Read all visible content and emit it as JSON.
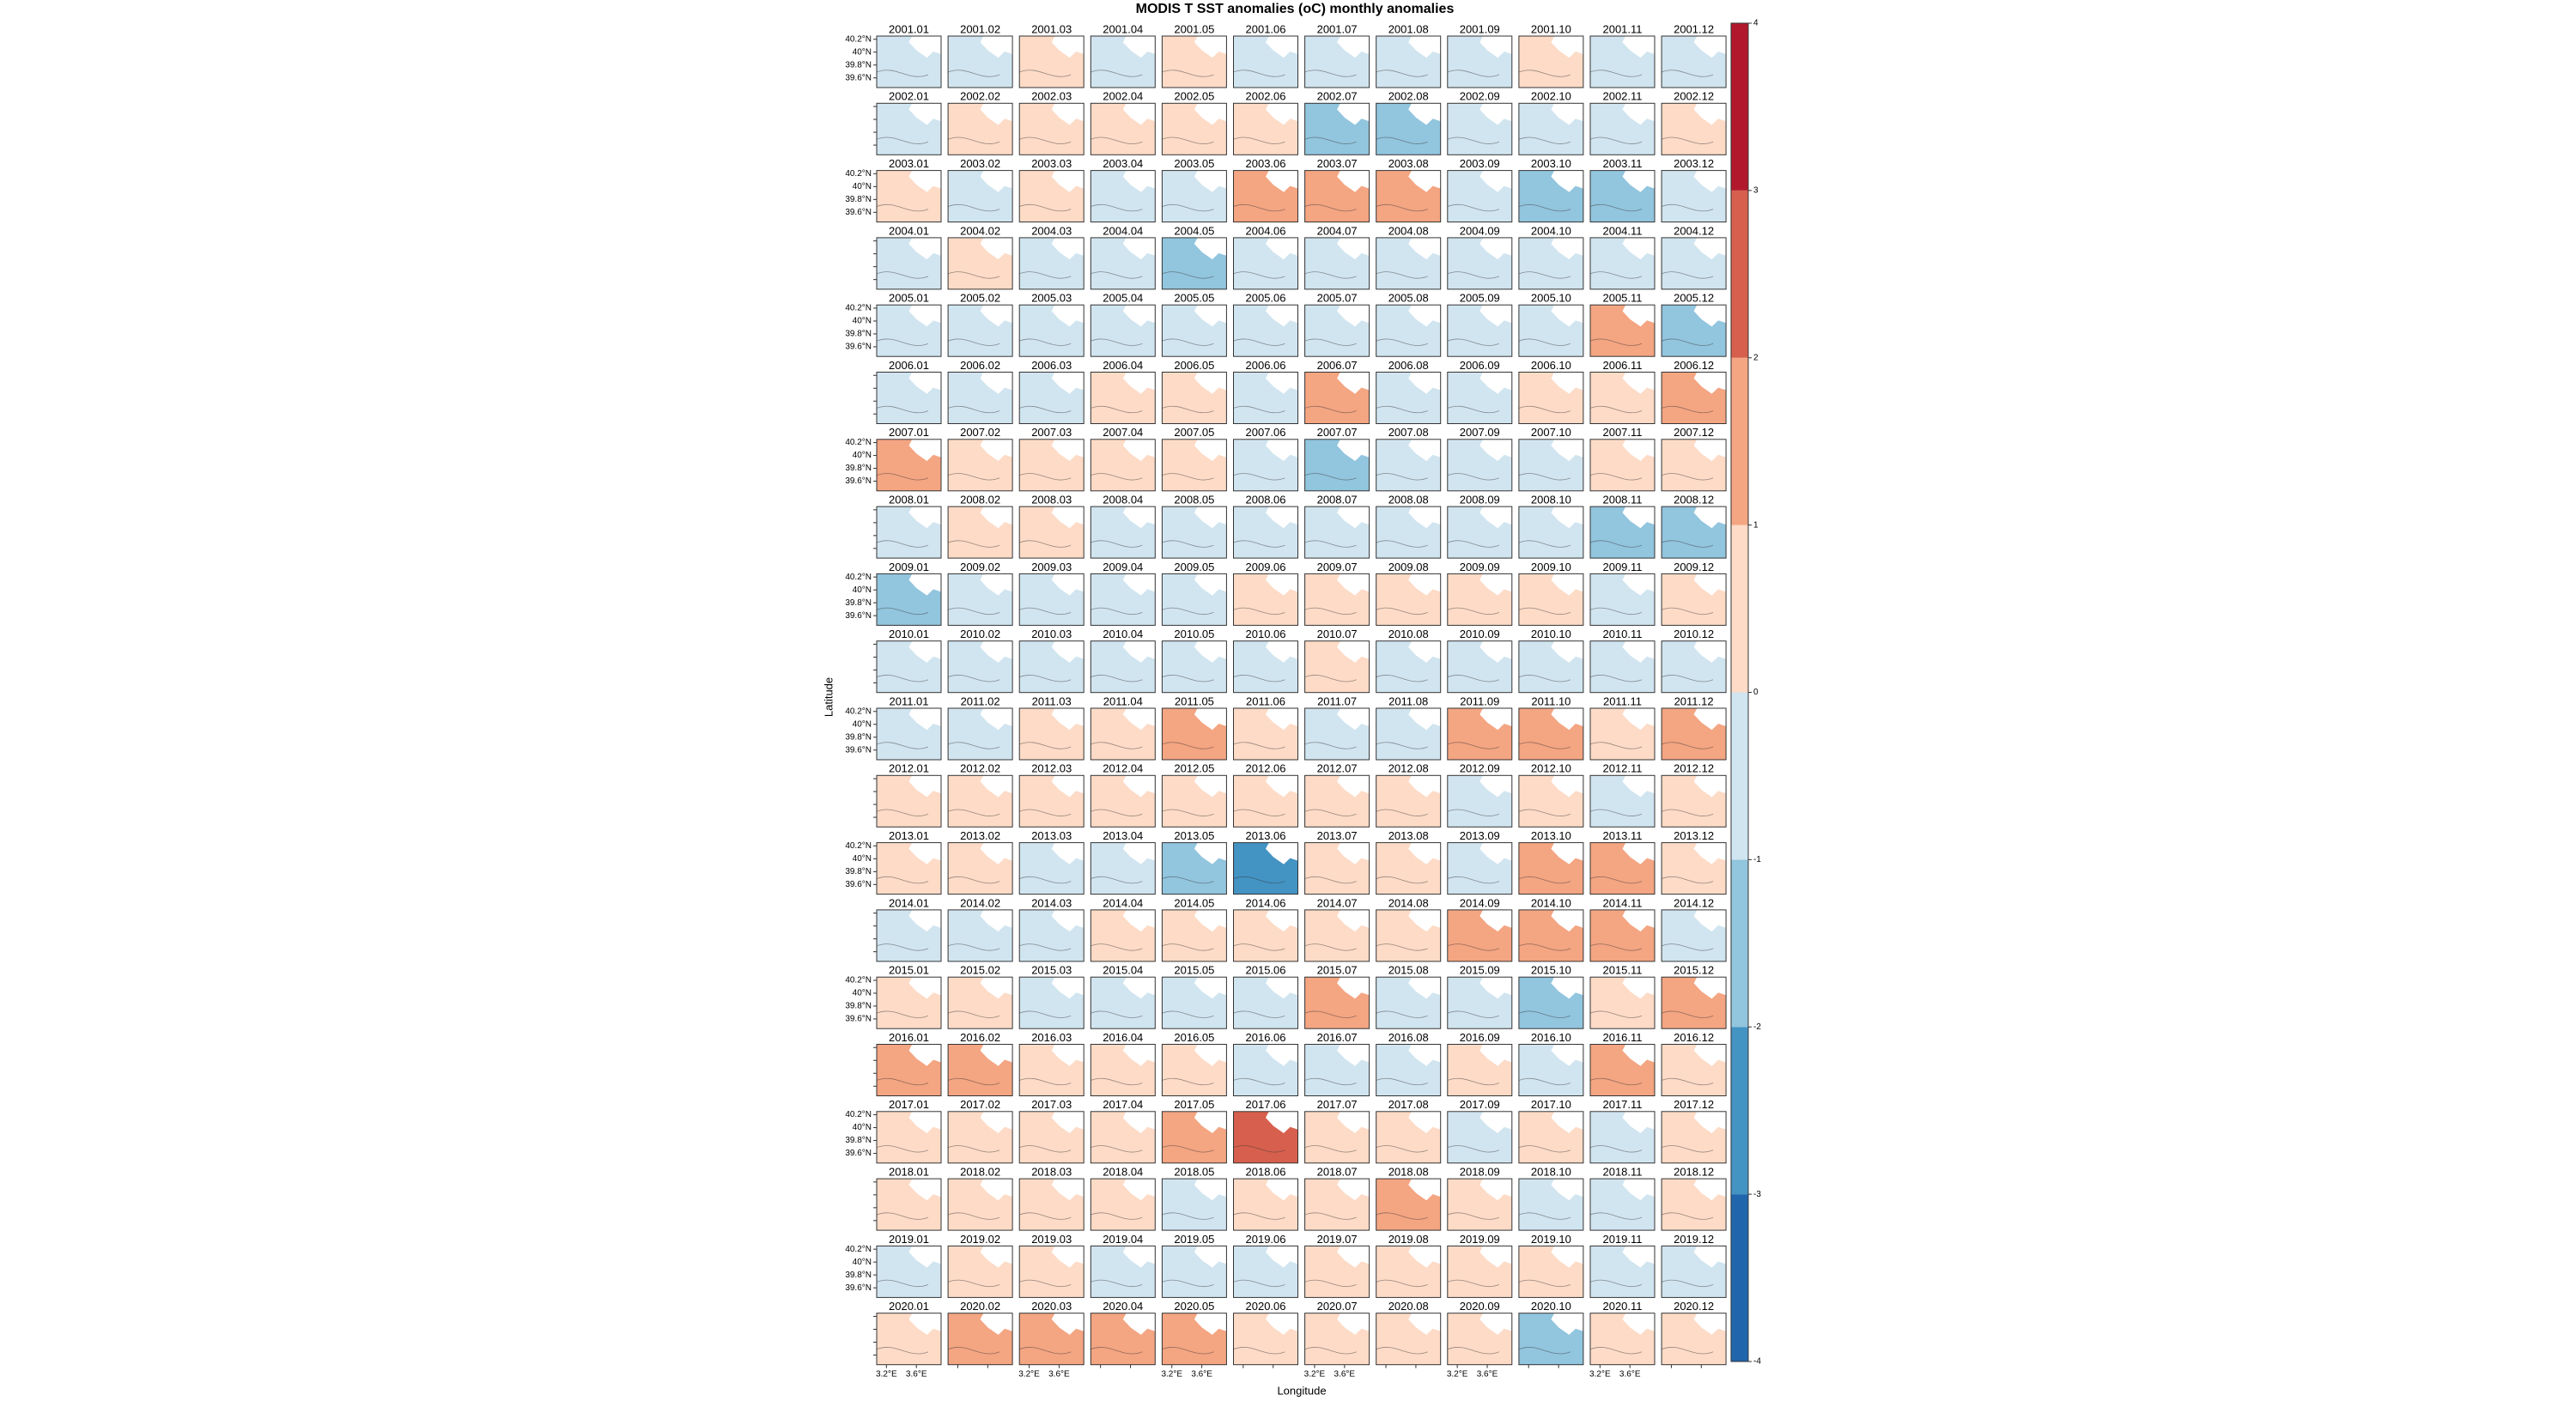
{
  "chart_data": {
    "type": "map-panels",
    "title": "MODIS T SST anomalies (oC) monthly anomalies",
    "x_label": "Longitude",
    "y_label": "Latitude",
    "columns": 12,
    "panels": [
      "2001.01",
      "2001.02",
      "2001.03",
      "2001.04",
      "2001.05",
      "2001.06",
      "2001.07",
      "2001.08",
      "2001.09",
      "2001.10",
      "2001.11",
      "2001.12",
      "2002.01",
      "2002.02",
      "2002.03",
      "2002.04",
      "2002.05",
      "2002.06",
      "2002.07",
      "2002.08",
      "2002.09",
      "2002.10",
      "2002.11",
      "2002.12",
      "2003.01",
      "2003.02",
      "2003.03",
      "2003.04",
      "2003.05",
      "2003.06",
      "2003.07",
      "2003.08",
      "2003.09",
      "2003.10",
      "2003.11",
      "2003.12",
      "2004.01",
      "2004.02",
      "2004.03",
      "2004.04",
      "2004.05",
      "2004.06",
      "2004.07",
      "2004.08",
      "2004.09",
      "2004.10",
      "2004.11",
      "2004.12",
      "2005.01",
      "2005.02",
      "2005.03",
      "2005.04",
      "2005.05",
      "2005.06",
      "2005.07",
      "2005.08",
      "2005.09",
      "2005.10",
      "2005.11",
      "2005.12",
      "2006.01",
      "2006.02",
      "2006.03",
      "2006.04",
      "2006.05",
      "2006.06",
      "2006.07",
      "2006.08",
      "2006.09",
      "2006.10",
      "2006.11",
      "2006.12",
      "2007.01",
      "2007.02",
      "2007.03",
      "2007.04",
      "2007.05",
      "2007.06",
      "2007.07",
      "2007.08",
      "2007.09",
      "2007.10",
      "2007.11",
      "2007.12",
      "2008.01",
      "2008.02",
      "2008.03",
      "2008.04",
      "2008.05",
      "2008.06",
      "2008.07",
      "2008.08",
      "2008.09",
      "2008.10",
      "2008.11",
      "2008.12",
      "2009.01",
      "2009.02",
      "2009.03",
      "2009.04",
      "2009.05",
      "2009.06",
      "2009.07",
      "2009.08",
      "2009.09",
      "2009.10",
      "2009.11",
      "2009.12",
      "2010.01",
      "2010.02",
      "2010.03",
      "2010.04",
      "2010.05",
      "2010.06",
      "2010.07",
      "2010.08",
      "2010.09",
      "2010.10",
      "2010.11",
      "2010.12",
      "2011.01",
      "2011.02",
      "2011.03",
      "2011.04",
      "2011.05",
      "2011.06",
      "2011.07",
      "2011.08",
      "2011.09",
      "2011.10",
      "2011.11",
      "2011.12",
      "2012.01",
      "2012.02",
      "2012.03",
      "2012.04",
      "2012.05",
      "2012.06",
      "2012.07",
      "2012.08",
      "2012.09",
      "2012.10",
      "2012.11",
      "2012.12",
      "2013.01",
      "2013.02",
      "2013.03",
      "2013.04",
      "2013.05",
      "2013.06",
      "2013.07",
      "2013.08",
      "2013.09",
      "2013.10",
      "2013.11",
      "2013.12",
      "2014.01",
      "2014.02",
      "2014.03",
      "2014.04",
      "2014.05",
      "2014.06",
      "2014.07",
      "2014.08",
      "2014.09",
      "2014.10",
      "2014.11",
      "2014.12",
      "2015.01",
      "2015.02",
      "2015.03",
      "2015.04",
      "2015.05",
      "2015.06",
      "2015.07",
      "2015.08",
      "2015.09",
      "2015.10",
      "2015.11",
      "2015.12",
      "2016.01",
      "2016.02",
      "2016.03",
      "2016.04",
      "2016.05",
      "2016.06",
      "2016.07",
      "2016.08",
      "2016.09",
      "2016.10",
      "2016.11",
      "2016.12",
      "2017.01",
      "2017.02",
      "2017.03",
      "2017.04",
      "2017.05",
      "2017.06",
      "2017.07",
      "2017.08",
      "2017.09",
      "2017.10",
      "2017.11",
      "2017.12",
      "2018.01",
      "2018.02",
      "2018.03",
      "2018.04",
      "2018.05",
      "2018.06",
      "2018.07",
      "2018.08",
      "2018.09",
      "2018.10",
      "2018.11",
      "2018.12",
      "2019.01",
      "2019.02",
      "2019.03",
      "2019.04",
      "2019.05",
      "2019.06",
      "2019.07",
      "2019.08",
      "2019.09",
      "2019.10",
      "2019.11",
      "2019.12",
      "2020.01",
      "2020.02",
      "2020.03",
      "2020.04",
      "2020.05",
      "2020.06",
      "2020.07",
      "2020.08",
      "2020.09",
      "2020.10",
      "2020.11",
      "2020.12"
    ],
    "values": [
      -0.5,
      -0.5,
      0.5,
      -0.5,
      0.5,
      -0.5,
      -0.5,
      -0.5,
      -0.5,
      0.5,
      -0.5,
      -0.5,
      -0.5,
      0.5,
      0.5,
      0.5,
      0.5,
      0.5,
      -1.5,
      -1.5,
      -0.5,
      -0.5,
      -0.5,
      0.5,
      0.5,
      -0.5,
      0.5,
      -0.5,
      -0.5,
      1.5,
      1.5,
      1.5,
      -0.5,
      -1.5,
      -1.5,
      -0.5,
      -0.5,
      0.5,
      -0.5,
      -0.5,
      -1.5,
      -0.5,
      -0.5,
      -0.5,
      -0.5,
      -0.5,
      -0.5,
      -0.5,
      -0.5,
      -0.5,
      -0.5,
      -0.5,
      -0.5,
      -0.5,
      -0.5,
      -0.5,
      -0.5,
      -0.5,
      1.5,
      -1.5,
      -0.5,
      -0.5,
      -0.5,
      0.5,
      0.5,
      -0.5,
      1.5,
      -0.5,
      -0.5,
      0.5,
      0.5,
      1.5,
      1.5,
      0.5,
      0.5,
      0.5,
      0.5,
      -0.5,
      -1.5,
      -0.5,
      -0.5,
      -0.5,
      0.5,
      0.5,
      -0.5,
      0.5,
      0.5,
      -0.5,
      -0.5,
      -0.5,
      -0.5,
      -0.5,
      -0.5,
      -0.5,
      -1.5,
      -1.5,
      -1.5,
      -0.5,
      -0.5,
      -0.5,
      -0.5,
      0.5,
      0.5,
      0.5,
      0.5,
      0.5,
      -0.5,
      0.5,
      -0.5,
      -0.5,
      -0.5,
      -0.5,
      -0.5,
      -0.5,
      0.5,
      -0.5,
      -0.5,
      -0.5,
      -0.5,
      -0.5,
      -0.5,
      -0.5,
      0.5,
      0.5,
      1.5,
      0.5,
      -0.5,
      -0.5,
      1.5,
      1.5,
      0.5,
      1.5,
      0.5,
      0.5,
      0.5,
      0.5,
      0.5,
      0.5,
      0.5,
      0.5,
      -0.5,
      0.5,
      -0.5,
      0.5,
      0.5,
      0.5,
      -0.5,
      -0.5,
      -1.5,
      -2.5,
      0.5,
      0.5,
      -0.5,
      1.5,
      1.5,
      0.5,
      -0.5,
      -0.5,
      -0.5,
      0.5,
      0.5,
      0.5,
      0.5,
      0.5,
      1.5,
      1.5,
      1.5,
      -0.5,
      0.5,
      0.5,
      -0.5,
      -0.5,
      -0.5,
      -0.5,
      1.5,
      -0.5,
      -0.5,
      -1.5,
      0.5,
      1.5,
      1.5,
      1.5,
      0.5,
      0.5,
      0.5,
      -0.5,
      -0.5,
      -0.5,
      0.5,
      -0.5,
      1.5,
      0.5,
      0.5,
      0.5,
      0.5,
      0.5,
      1.5,
      2.5,
      0.5,
      0.5,
      -0.5,
      0.5,
      -0.5,
      0.5,
      0.5,
      0.5,
      0.5,
      0.5,
      -0.5,
      0.5,
      0.5,
      1.5,
      0.5,
      -0.5,
      -0.5,
      0.5,
      -0.5,
      0.5,
      0.5,
      -0.5,
      -0.5,
      -0.5,
      0.5,
      0.5,
      0.5,
      0.5,
      -0.5,
      -0.5,
      0.5,
      1.5,
      1.5,
      1.5,
      1.5,
      0.5,
      0.5,
      0.5,
      0.5,
      -1.5,
      0.5,
      0.5
    ],
    "xlim": [
      3.07,
      3.93
    ],
    "xticks": [
      {
        "value": 3.2,
        "label": "3.2°E"
      },
      {
        "value": 3.6,
        "label": "3.6°E"
      }
    ],
    "ylim": [
      39.45,
      40.25
    ],
    "yticks": [
      {
        "value": 40.2,
        "label": "40.2°N"
      },
      {
        "value": 40,
        "label": "40°N"
      },
      {
        "value": 39.8,
        "label": "39.8°N"
      },
      {
        "value": 39.6,
        "label": "39.6°N"
      }
    ],
    "colorbar": {
      "lim": [
        -4,
        4
      ],
      "ticks": [
        -4,
        -3,
        -2,
        -1,
        0,
        1,
        2,
        3,
        4
      ],
      "colors": [
        "#2166ac",
        "#4393c3",
        "#92c5de",
        "#d1e5f0",
        "#fddbc7",
        "#f4a582",
        "#d6604d",
        "#b2182b"
      ]
    }
  }
}
